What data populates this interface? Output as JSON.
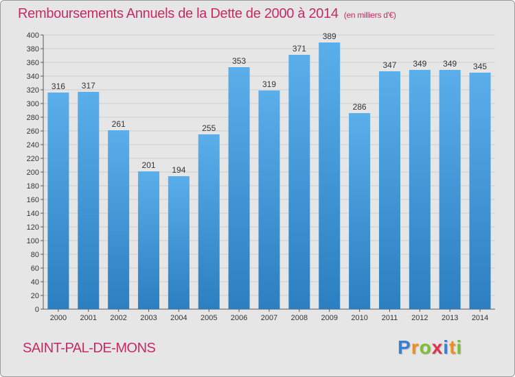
{
  "chart_data": {
    "type": "bar",
    "title": "Remboursements Annuels de la Dette de 2000 à 2014",
    "subtitle": "(en milliers d'€)",
    "categories": [
      "2000",
      "2001",
      "2002",
      "2003",
      "2004",
      "2005",
      "2006",
      "2007",
      "2008",
      "2009",
      "2010",
      "2011",
      "2012",
      "2013",
      "2014"
    ],
    "values": [
      316,
      317,
      261,
      201,
      194,
      255,
      353,
      319,
      371,
      389,
      286,
      347,
      349,
      349,
      345
    ],
    "ylim": [
      0,
      400
    ],
    "ytick_step": 20,
    "grid": true,
    "xlabel": "",
    "ylabel": "",
    "bar_color_top": "#5aaeea",
    "bar_color_bottom": "#2c7fc0",
    "grid_color": "#cfcfcf"
  },
  "footer": {
    "commune": "SAINT-PAL-DE-MONS",
    "logo_letters": [
      "P",
      "r",
      "o",
      "x",
      "i",
      "t",
      "i"
    ],
    "logo_colors": [
      "#3a7fd0",
      "#f28c1d",
      "#7cbf2f",
      "#e0314f",
      "#3a7fd0",
      "#f28c1d",
      "#7cbf2f"
    ]
  }
}
